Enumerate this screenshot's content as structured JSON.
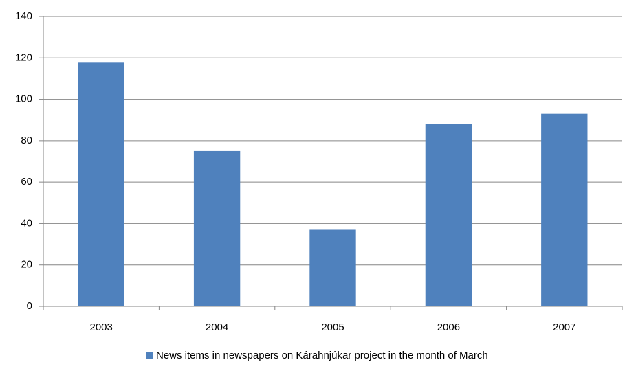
{
  "chart_data": {
    "type": "bar",
    "categories": [
      "2003",
      "2004",
      "2005",
      "2006",
      "2007"
    ],
    "series": [
      {
        "name": "News items in newspapers on Kárahnjúkar project in the month of March",
        "color": "#4f81bd",
        "values": [
          118,
          75,
          37,
          88,
          93
        ]
      }
    ],
    "ylim": [
      0,
      140
    ],
    "yticks": [
      0,
      20,
      40,
      60,
      80,
      100,
      120,
      140
    ],
    "grid": true,
    "legend": "bottom"
  }
}
